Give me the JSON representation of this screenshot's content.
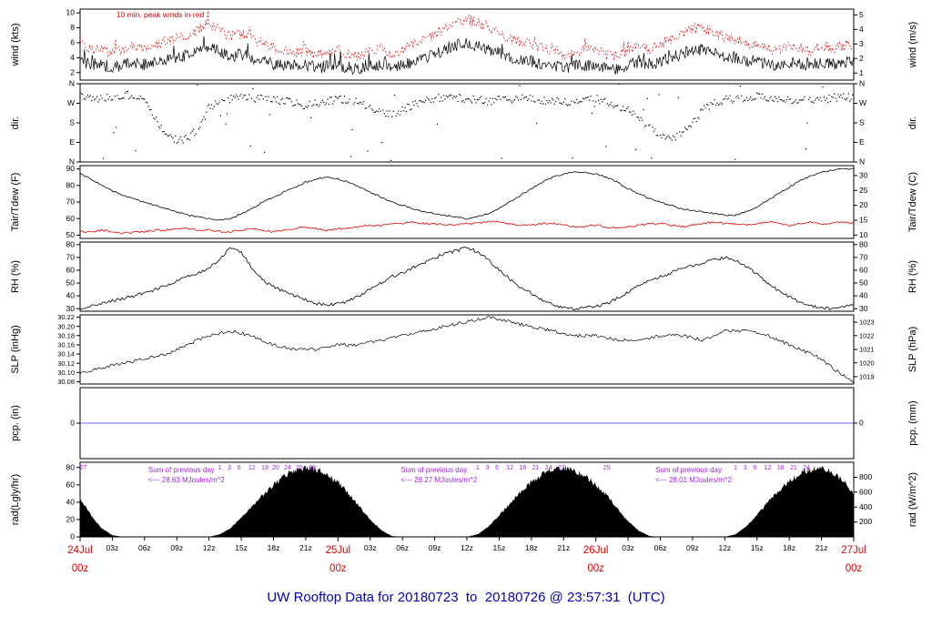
{
  "title": "UW Rooftop Data for 20180723  to  20180726 @ 23:57:31  (UTC)",
  "colors": {
    "line_black": "#000000",
    "peak_red": "#e00000",
    "dew_red": "#dd0000",
    "date_red": "#dd0000",
    "pcp_blue": "#3333ff",
    "annotation_purple": "#a020f0",
    "title_blue": "#0000bb"
  },
  "chart_data": {
    "type": "line",
    "title": "UW Rooftop Data for 20180723  to  20180726 @ 23:57:31  (UTC)",
    "x_unit": "hours since 24Jul 00z (UTC)",
    "x_range": [
      0,
      72
    ],
    "wind_note": "10 min. peak winds in red",
    "panels": [
      {
        "id": "wind",
        "left_title": "wind (kts)",
        "right_title": "wind (m/s)",
        "ymin": 1,
        "ymax": 10.5,
        "left_ticks": [
          {
            "v": 10,
            "t": "10"
          },
          {
            "v": 8,
            "t": "8"
          },
          {
            "v": 6,
            "t": "6"
          },
          {
            "v": 4,
            "t": "4"
          },
          {
            "v": 2,
            "t": "2"
          }
        ],
        "right_ticks": [
          {
            "v": 9.72,
            "t": "5"
          },
          {
            "v": 7.78,
            "t": "4"
          },
          {
            "v": 5.83,
            "t": "3"
          },
          {
            "v": 3.89,
            "t": "2"
          },
          {
            "v": 1.94,
            "t": "1"
          }
        ]
      },
      {
        "id": "dir",
        "left_title": "dir.",
        "right_title": "dir.",
        "ymin": 0,
        "ymax": 360,
        "left_ticks": [
          {
            "v": 360,
            "t": "N"
          },
          {
            "v": 270,
            "t": "W"
          },
          {
            "v": 180,
            "t": "S"
          },
          {
            "v": 90,
            "t": "E"
          },
          {
            "v": 0,
            "t": "N"
          }
        ],
        "right_ticks": [
          {
            "v": 360,
            "t": "N"
          },
          {
            "v": 270,
            "t": "W"
          },
          {
            "v": 180,
            "t": "S"
          },
          {
            "v": 90,
            "t": "E"
          },
          {
            "v": 0,
            "t": "N"
          }
        ]
      },
      {
        "id": "temp",
        "left_title": "Tair/Tdew (F)",
        "right_title": "Tair/Tdew (C)",
        "ymin": 48,
        "ymax": 92,
        "left_ticks": [
          {
            "v": 90,
            "t": "90"
          },
          {
            "v": 80,
            "t": "80"
          },
          {
            "v": 70,
            "t": "70"
          },
          {
            "v": 60,
            "t": "60"
          },
          {
            "v": 50,
            "t": "50"
          }
        ],
        "right_ticks": [
          {
            "v": 86,
            "t": "30"
          },
          {
            "v": 77,
            "t": "25"
          },
          {
            "v": 68,
            "t": "20"
          },
          {
            "v": 59,
            "t": "15"
          },
          {
            "v": 50,
            "t": "10"
          }
        ]
      },
      {
        "id": "rh",
        "left_title": "RH (%)",
        "right_title": "RH (%)",
        "ymin": 28,
        "ymax": 82,
        "left_ticks": [
          {
            "v": 80,
            "t": "80"
          },
          {
            "v": 70,
            "t": "70"
          },
          {
            "v": 60,
            "t": "60"
          },
          {
            "v": 50,
            "t": "50"
          },
          {
            "v": 40,
            "t": "40"
          },
          {
            "v": 30,
            "t": "30"
          }
        ],
        "right_ticks": [
          {
            "v": 80,
            "t": "80"
          },
          {
            "v": 70,
            "t": "70"
          },
          {
            "v": 60,
            "t": "60"
          },
          {
            "v": 50,
            "t": "50"
          },
          {
            "v": 40,
            "t": "40"
          },
          {
            "v": 30,
            "t": "30"
          }
        ]
      },
      {
        "id": "slp",
        "left_title": "SLP (inHg)",
        "right_title": "SLP (hPa)",
        "ymin": 30.075,
        "ymax": 30.225,
        "left_ticks": [
          {
            "v": 30.22,
            "t": "30.22"
          },
          {
            "v": 30.2,
            "t": "30.20"
          },
          {
            "v": 30.18,
            "t": "30.18"
          },
          {
            "v": 30.16,
            "t": "30.16"
          },
          {
            "v": 30.14,
            "t": "30.14"
          },
          {
            "v": 30.12,
            "t": "30.12"
          },
          {
            "v": 30.1,
            "t": "30.10"
          },
          {
            "v": 30.08,
            "t": "30.08"
          }
        ],
        "right_ticks": [
          {
            "v": 30.209,
            "t": "1023"
          },
          {
            "v": 30.18,
            "t": "1022"
          },
          {
            "v": 30.15,
            "t": "1021"
          },
          {
            "v": 30.121,
            "t": "1020"
          },
          {
            "v": 30.091,
            "t": "1019"
          }
        ]
      },
      {
        "id": "pcp",
        "left_title": "pcp. (in)",
        "right_title": "pcp. (mm)",
        "ymin": -0.5,
        "ymax": 0.5,
        "left_ticks": [
          {
            "v": 0,
            "t": "0"
          }
        ],
        "right_ticks": [
          {
            "v": 0,
            "t": "0"
          }
        ]
      },
      {
        "id": "rad",
        "left_title": "rad(Lgly/hr)",
        "right_title": "rad (W/m^2)",
        "ymin": 0,
        "ymax": 86,
        "left_ticks": [
          {
            "v": 80,
            "t": "80"
          },
          {
            "v": 60,
            "t": "60"
          },
          {
            "v": 40,
            "t": "40"
          },
          {
            "v": 20,
            "t": "20"
          },
          {
            "v": 0,
            "t": "0"
          }
        ],
        "right_ticks": [
          {
            "v": 68.8,
            "t": "800"
          },
          {
            "v": 51.6,
            "t": "600"
          },
          {
            "v": 34.4,
            "t": "400"
          },
          {
            "v": 17.2,
            "t": "200"
          }
        ]
      }
    ],
    "series": {
      "hour_step": 1,
      "wind_kts": [
        3.5,
        3.2,
        3.0,
        2.8,
        3.0,
        3.4,
        3.1,
        3.4,
        3.8,
        4.0,
        4.4,
        5.0,
        5.6,
        4.8,
        4.2,
        4.5,
        4.0,
        3.6,
        3.2,
        3.0,
        2.7,
        3.0,
        2.6,
        2.9,
        3.0,
        2.6,
        2.5,
        2.9,
        3.1,
        2.6,
        3.0,
        3.5,
        4.0,
        4.5,
        5.0,
        5.6,
        6.0,
        5.5,
        5.0,
        4.6,
        4.1,
        3.6,
        3.5,
        3.1,
        3.0,
        2.6,
        2.9,
        3.0,
        3.0,
        2.6,
        2.5,
        3.0,
        3.4,
        3.0,
        3.5,
        4.0,
        4.5,
        5.0,
        5.1,
        4.6,
        4.1,
        4.0,
        3.6,
        3.5,
        3.1,
        3.0,
        3.4,
        3.1,
        3.0,
        3.4,
        3.1,
        3.4,
        3.5
      ],
      "wind_peak_kts": [
        5.8,
        5.2,
        5.0,
        4.6,
        5.0,
        5.6,
        5.2,
        5.6,
        6.2,
        6.5,
        7.0,
        7.8,
        8.6,
        7.6,
        6.8,
        7.2,
        6.5,
        5.9,
        5.3,
        5.0,
        4.6,
        5.0,
        4.4,
        4.8,
        5.0,
        4.4,
        4.2,
        4.8,
        5.2,
        4.4,
        5.0,
        5.8,
        6.5,
        7.2,
        7.9,
        8.6,
        9.2,
        8.6,
        7.9,
        7.3,
        6.6,
        5.9,
        5.8,
        5.2,
        5.0,
        4.4,
        4.8,
        5.0,
        5.0,
        4.4,
        4.2,
        5.0,
        5.6,
        5.0,
        5.8,
        6.5,
        7.2,
        7.9,
        8.0,
        7.3,
        6.6,
        6.5,
        5.9,
        5.8,
        5.2,
        5.0,
        5.6,
        5.2,
        5.0,
        5.6,
        5.2,
        5.6,
        5.8
      ],
      "dir_deg": [
        300,
        295,
        290,
        300,
        310,
        305,
        280,
        200,
        120,
        100,
        110,
        150,
        250,
        280,
        290,
        300,
        295,
        290,
        285,
        280,
        270,
        260,
        270,
        280,
        290,
        285,
        270,
        250,
        230,
        220,
        240,
        260,
        280,
        290,
        300,
        295,
        290,
        285,
        280,
        285,
        290,
        295,
        290,
        285,
        280,
        275,
        280,
        285,
        290,
        280,
        260,
        240,
        200,
        160,
        120,
        100,
        130,
        180,
        240,
        270,
        285,
        290,
        295,
        300,
        295,
        290,
        285,
        280,
        285,
        290,
        295,
        300,
        295
      ],
      "tair_f": [
        87,
        84,
        80,
        77,
        74,
        72,
        70,
        68,
        66,
        64,
        62,
        61,
        60,
        59,
        60,
        63,
        66,
        70,
        73,
        76,
        79,
        82,
        84,
        85,
        84,
        82,
        79,
        76,
        73,
        70,
        68,
        66,
        64,
        63,
        62,
        61,
        60,
        61,
        63,
        66,
        70,
        74,
        78,
        82,
        85,
        87,
        88,
        88,
        87,
        85,
        82,
        78,
        75,
        72,
        70,
        68,
        66,
        65,
        64,
        63,
        62,
        62,
        64,
        67,
        71,
        75,
        79,
        83,
        86,
        88,
        89,
        90,
        90
      ],
      "tdew_f": [
        52,
        52,
        53,
        52,
        51,
        52,
        52,
        53,
        53,
        54,
        54,
        53,
        53,
        52,
        52,
        53,
        54,
        53,
        52,
        53,
        54,
        55,
        54,
        53,
        54,
        54,
        55,
        56,
        56,
        57,
        57,
        58,
        57,
        57,
        56,
        56,
        57,
        57,
        58,
        58,
        57,
        56,
        56,
        57,
        57,
        56,
        55,
        55,
        56,
        55,
        54,
        55,
        56,
        57,
        57,
        56,
        55,
        56,
        57,
        58,
        57,
        57,
        56,
        57,
        58,
        57,
        56,
        57,
        58,
        57,
        57,
        58,
        57
      ],
      "rh_pct": [
        30,
        32,
        34,
        36,
        38,
        40,
        42,
        45,
        48,
        52,
        56,
        58,
        62,
        68,
        78,
        74,
        62,
        52,
        47,
        43,
        40,
        37,
        34,
        33,
        34,
        36,
        40,
        45,
        50,
        55,
        58,
        62,
        66,
        70,
        73,
        75,
        78,
        74,
        68,
        60,
        53,
        47,
        42,
        37,
        33,
        31,
        30,
        31,
        32,
        34,
        38,
        43,
        48,
        52,
        55,
        58,
        62,
        64,
        66,
        68,
        70,
        68,
        63,
        57,
        50,
        44,
        39,
        35,
        32,
        31,
        30,
        31,
        33
      ],
      "slp_inhg": [
        30.1,
        30.105,
        30.11,
        30.115,
        30.12,
        30.125,
        30.13,
        30.135,
        30.14,
        30.15,
        30.16,
        30.17,
        30.18,
        30.185,
        30.19,
        30.185,
        30.18,
        30.17,
        30.16,
        30.155,
        30.15,
        30.15,
        30.15,
        30.155,
        30.16,
        30.16,
        30.16,
        30.165,
        30.17,
        30.175,
        30.18,
        30.185,
        30.19,
        30.195,
        30.2,
        30.205,
        30.21,
        30.215,
        30.22,
        30.215,
        30.21,
        30.205,
        30.2,
        30.195,
        30.19,
        30.185,
        30.18,
        30.18,
        30.18,
        30.175,
        30.17,
        30.17,
        30.17,
        30.175,
        30.18,
        30.18,
        30.18,
        30.175,
        30.17,
        30.18,
        30.19,
        30.19,
        30.19,
        30.185,
        30.18,
        30.17,
        30.16,
        30.15,
        30.14,
        30.13,
        30.11,
        30.095,
        30.08
      ],
      "pcp_in": 0,
      "rad_lyhr": [
        45,
        25,
        10,
        2,
        0,
        0,
        0,
        0,
        0,
        0,
        0,
        0,
        0,
        3,
        10,
        22,
        35,
        48,
        60,
        70,
        77,
        80,
        78,
        72,
        63,
        50,
        35,
        20,
        8,
        1,
        0,
        0,
        0,
        0,
        0,
        0,
        0,
        3,
        12,
        25,
        38,
        52,
        63,
        72,
        78,
        80,
        76,
        70,
        60,
        48,
        33,
        18,
        7,
        1,
        0,
        0,
        0,
        0,
        0,
        0,
        0,
        3,
        12,
        25,
        40,
        53,
        64,
        73,
        78,
        79,
        75,
        65,
        50
      ]
    },
    "rad_sums": [
      {
        "h": 3.8,
        "label": "Sum of previous day",
        "value": "<--- 28.63 MJoules/m^2"
      },
      {
        "h": 27.3,
        "label": "Sum of previous day",
        "value": "<--- 28.27 MJoules/m^2"
      },
      {
        "h": 51.0,
        "label": "Sum of previous day",
        "value": "<--- 28.01 MJoules/m^2"
      }
    ],
    "elevation_labels": [
      {
        "h": 0.3,
        "t": "27"
      },
      {
        "h": 13.0,
        "t": "1"
      },
      {
        "h": 13.9,
        "t": "3"
      },
      {
        "h": 14.8,
        "t": "6"
      },
      {
        "h": 16.0,
        "t": "12"
      },
      {
        "h": 17.2,
        "t": "18"
      },
      {
        "h": 18.2,
        "t": "20"
      },
      {
        "h": 19.3,
        "t": "24"
      },
      {
        "h": 20.4,
        "t": "25"
      },
      {
        "h": 21.6,
        "t": "28"
      },
      {
        "h": 37.0,
        "t": "1"
      },
      {
        "h": 37.9,
        "t": "3"
      },
      {
        "h": 38.8,
        "t": "6"
      },
      {
        "h": 40.0,
        "t": "12"
      },
      {
        "h": 41.2,
        "t": "18"
      },
      {
        "h": 42.4,
        "t": "21"
      },
      {
        "h": 43.6,
        "t": "24"
      },
      {
        "h": 44.8,
        "t": "27"
      },
      {
        "h": 49.0,
        "t": "25"
      },
      {
        "h": 61.0,
        "t": "1"
      },
      {
        "h": 61.9,
        "t": "3"
      },
      {
        "h": 62.8,
        "t": "6"
      },
      {
        "h": 64.0,
        "t": "12"
      },
      {
        "h": 65.2,
        "t": "18"
      },
      {
        "h": 66.4,
        "t": "21"
      },
      {
        "h": 67.6,
        "t": "24"
      }
    ],
    "x_ticks": [
      {
        "h": 3,
        "t": "03z"
      },
      {
        "h": 6,
        "t": "06z"
      },
      {
        "h": 9,
        "t": "09z"
      },
      {
        "h": 12,
        "t": "12z"
      },
      {
        "h": 15,
        "t": "15z"
      },
      {
        "h": 18,
        "t": "18z"
      },
      {
        "h": 21,
        "t": "21z"
      },
      {
        "h": 27,
        "t": "03z"
      },
      {
        "h": 30,
        "t": "06z"
      },
      {
        "h": 33,
        "t": "09z"
      },
      {
        "h": 36,
        "t": "12z"
      },
      {
        "h": 39,
        "t": "15z"
      },
      {
        "h": 42,
        "t": "18z"
      },
      {
        "h": 45,
        "t": "21z"
      },
      {
        "h": 51,
        "t": "03z"
      },
      {
        "h": 54,
        "t": "06z"
      },
      {
        "h": 57,
        "t": "09z"
      },
      {
        "h": 60,
        "t": "12z"
      },
      {
        "h": 63,
        "t": "15z"
      },
      {
        "h": 66,
        "t": "18z"
      },
      {
        "h": 69,
        "t": "21z"
      }
    ],
    "day_labels": [
      {
        "h": 0,
        "line1": "24Jul",
        "line2": "00z"
      },
      {
        "h": 24,
        "line1": "25Jul",
        "line2": "00z"
      },
      {
        "h": 48,
        "line1": "26Jul",
        "line2": "00z"
      },
      {
        "h": 72,
        "line1": "27Jul",
        "line2": "00z"
      }
    ]
  }
}
